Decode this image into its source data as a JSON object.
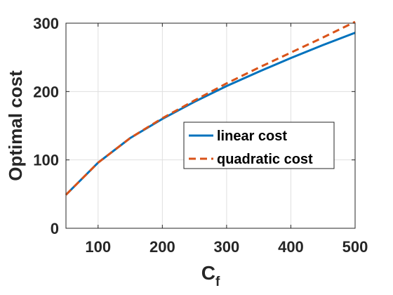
{
  "chart_data": {
    "type": "line",
    "xlabel": "C",
    "xlabel_subscript": "f",
    "ylabel": "Optimal cost",
    "xlim": [
      50,
      500
    ],
    "ylim": [
      0,
      300
    ],
    "xticks": [
      100,
      200,
      300,
      400,
      500
    ],
    "yticks": [
      0,
      100,
      200,
      300
    ],
    "xtick_labels": [
      "100",
      "200",
      "300",
      "400",
      "500"
    ],
    "ytick_labels": [
      "0",
      "100",
      "200",
      "300"
    ],
    "grid": true,
    "legend_position": "center-right",
    "series": [
      {
        "name": "linear cost",
        "color": "#0072BD",
        "style": "solid",
        "x": [
          50,
          100,
          150,
          200,
          250,
          300,
          350,
          400,
          450,
          500
        ],
        "y": [
          49,
          96,
          132,
          160,
          185,
          208,
          229,
          249,
          268,
          286
        ]
      },
      {
        "name": "quadratic cost",
        "color": "#D95319",
        "style": "dashed",
        "x": [
          50,
          100,
          150,
          200,
          250,
          300,
          350,
          400,
          450,
          500
        ],
        "y": [
          49,
          96,
          132,
          161,
          187,
          212,
          235,
          257,
          279,
          302
        ]
      }
    ]
  }
}
